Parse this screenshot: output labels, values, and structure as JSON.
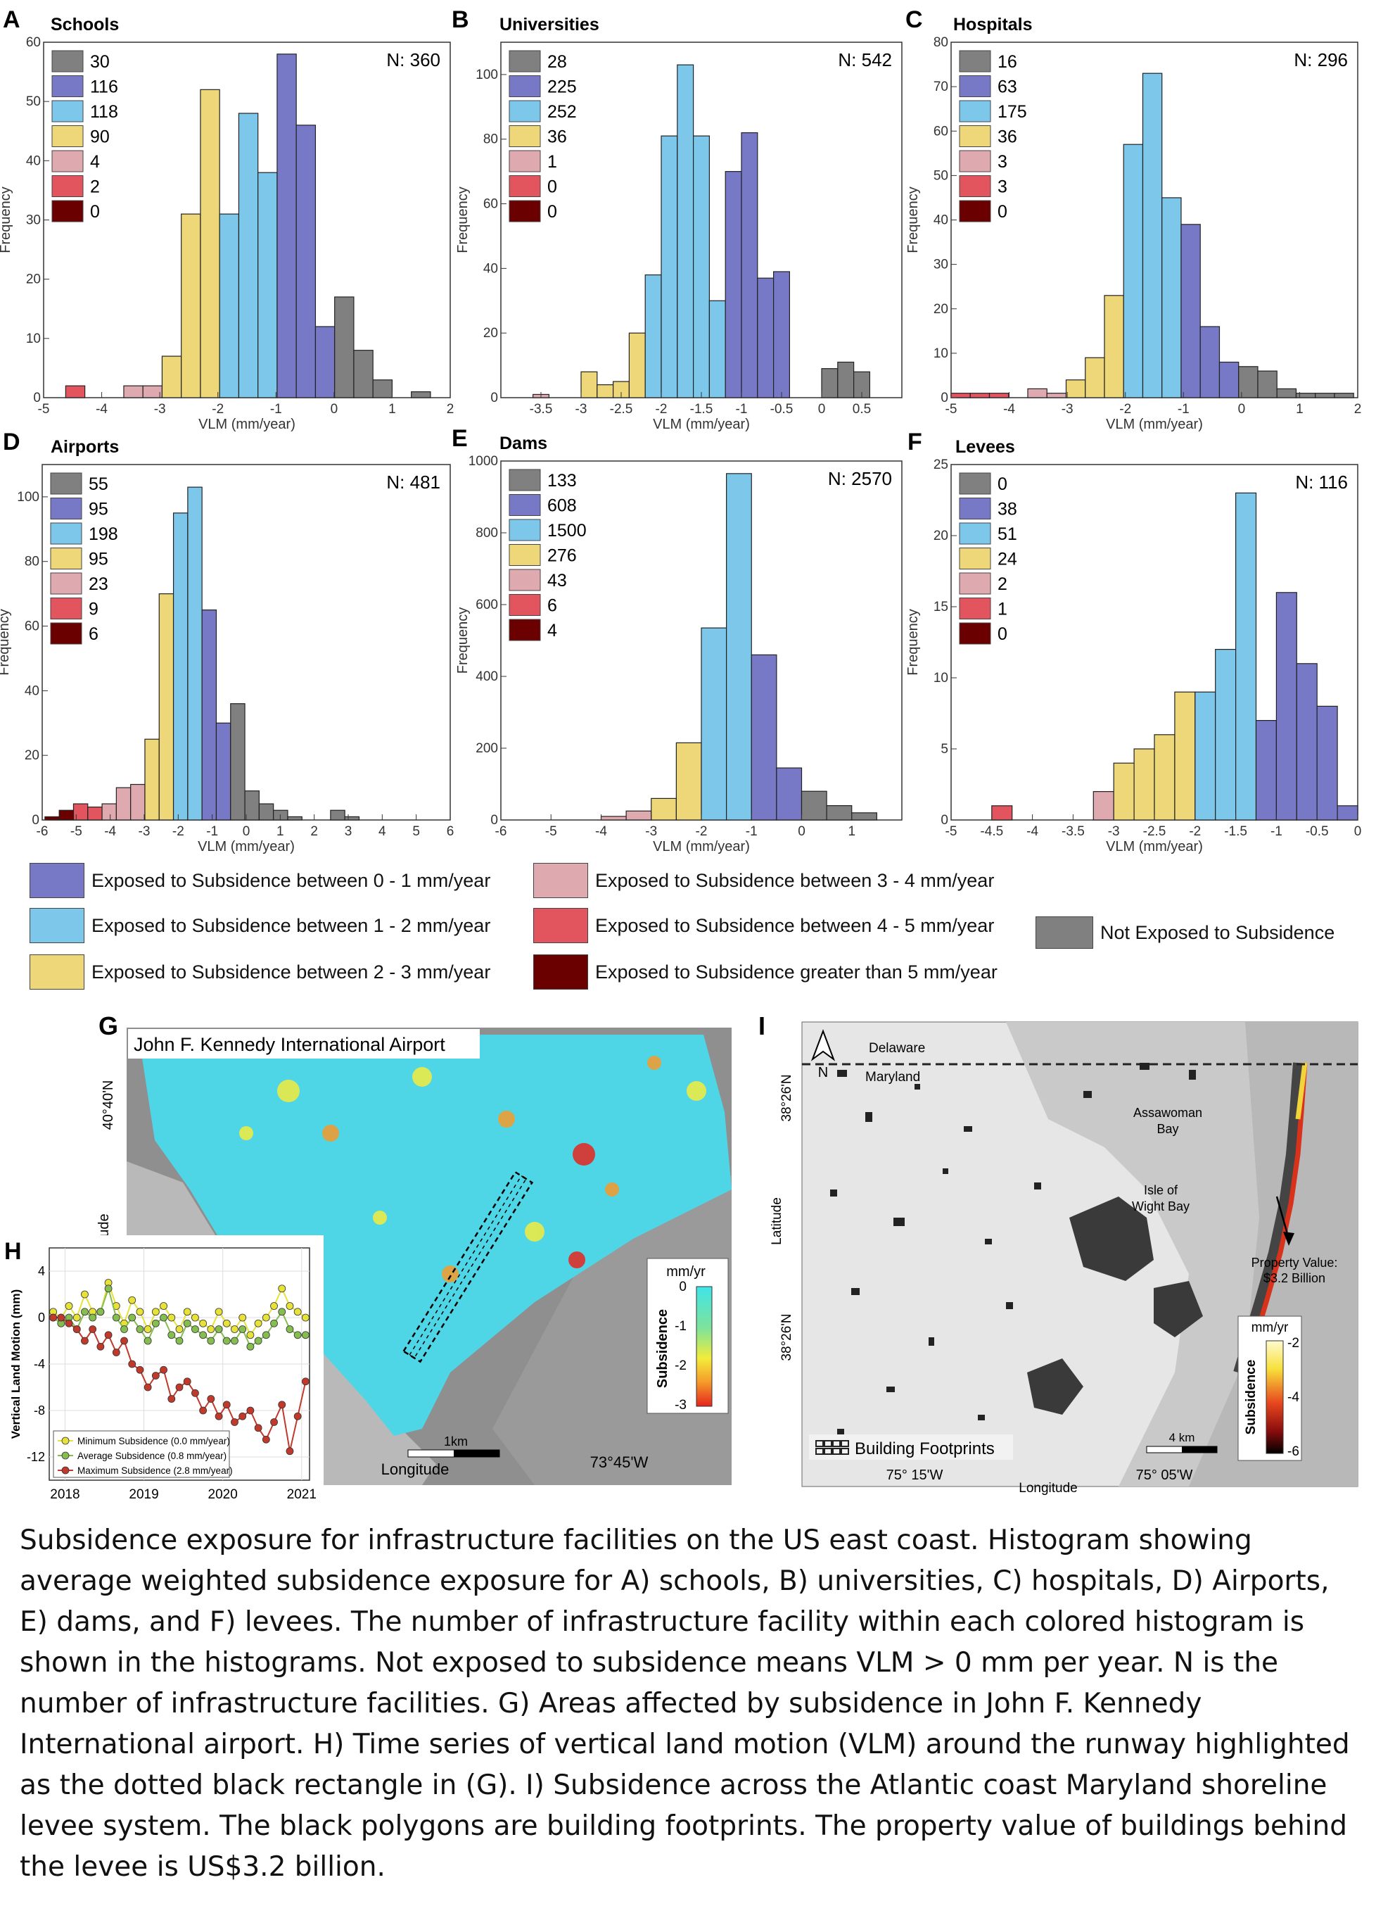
{
  "colors": {
    "grey": "#808080",
    "blue": "#7779c7",
    "lightblue": "#7dc8ea",
    "yellow": "#edd779",
    "pink": "#deaab0",
    "red": "#e2555f",
    "darkred": "#6b0000"
  },
  "chart_data": [
    {
      "type": "bar",
      "panel": "A",
      "title": "Schools",
      "n_label": "N: 360",
      "xlabel": "VLM (mm/year)",
      "ylabel": "Frequency",
      "xlim": [
        -5,
        2
      ],
      "ylim": [
        0,
        60
      ],
      "xticks": [
        -5,
        -4,
        -3,
        -2,
        -1,
        0,
        1,
        2
      ],
      "yticks": [
        0,
        10,
        20,
        30,
        40,
        50,
        60
      ],
      "bin_width": 0.33,
      "legend_counts": [
        "30",
        "116",
        "118",
        "90",
        "4",
        "2",
        "0"
      ],
      "bars": [
        {
          "x": -4.62,
          "v": 2,
          "c": "red"
        },
        {
          "x": -3.62,
          "v": 2,
          "c": "pink"
        },
        {
          "x": -3.29,
          "v": 2,
          "c": "pink"
        },
        {
          "x": -2.96,
          "v": 7,
          "c": "yellow"
        },
        {
          "x": -2.63,
          "v": 31,
          "c": "yellow"
        },
        {
          "x": -2.3,
          "v": 52,
          "c": "yellow"
        },
        {
          "x": -1.97,
          "v": 31,
          "c": "lightblue"
        },
        {
          "x": -1.64,
          "v": 48,
          "c": "lightblue"
        },
        {
          "x": -1.31,
          "v": 38,
          "c": "lightblue"
        },
        {
          "x": -0.98,
          "v": 58,
          "c": "blue"
        },
        {
          "x": -0.65,
          "v": 46,
          "c": "blue"
        },
        {
          "x": -0.32,
          "v": 12,
          "c": "blue"
        },
        {
          "x": 0.01,
          "v": 17,
          "c": "grey"
        },
        {
          "x": 0.34,
          "v": 8,
          "c": "grey"
        },
        {
          "x": 0.67,
          "v": 3,
          "c": "grey"
        },
        {
          "x": 1.33,
          "v": 1,
          "c": "grey"
        }
      ]
    },
    {
      "type": "bar",
      "panel": "B",
      "title": "Universities",
      "n_label": "N: 542",
      "xlabel": "VLM (mm/year)",
      "ylabel": "Frequency",
      "xlim": [
        -4,
        1
      ],
      "ylim": [
        0,
        110
      ],
      "xticks": [
        -3.5,
        -3,
        -2.5,
        -2,
        -1.5,
        -1,
        -0.5,
        0,
        0.5
      ],
      "xtick_labels": [
        "-3.5",
        "-3",
        "-2.5",
        "-2",
        "-1.5",
        "-1",
        "-0.5",
        "0",
        "0.5"
      ],
      "yticks": [
        0,
        20,
        40,
        60,
        80,
        100
      ],
      "bin_width": 0.2,
      "legend_counts": [
        "28",
        "225",
        "252",
        "36",
        "1",
        "0",
        "0"
      ],
      "bars": [
        {
          "x": -3.6,
          "v": 1,
          "c": "pink"
        },
        {
          "x": -3.0,
          "v": 8,
          "c": "yellow"
        },
        {
          "x": -2.8,
          "v": 4,
          "c": "yellow"
        },
        {
          "x": -2.6,
          "v": 5,
          "c": "yellow"
        },
        {
          "x": -2.4,
          "v": 20,
          "c": "yellow"
        },
        {
          "x": -2.2,
          "v": 38,
          "c": "lightblue"
        },
        {
          "x": -2.0,
          "v": 81,
          "c": "lightblue"
        },
        {
          "x": -1.8,
          "v": 103,
          "c": "lightblue"
        },
        {
          "x": -1.6,
          "v": 81,
          "c": "lightblue"
        },
        {
          "x": -1.4,
          "v": 30,
          "c": "lightblue"
        },
        {
          "x": -1.2,
          "v": 70,
          "c": "blue"
        },
        {
          "x": -1.0,
          "v": 82,
          "c": "blue"
        },
        {
          "x": -0.8,
          "v": 37,
          "c": "blue"
        },
        {
          "x": -0.6,
          "v": 39,
          "c": "blue"
        },
        {
          "x": 0.0,
          "v": 9,
          "c": "grey"
        },
        {
          "x": 0.2,
          "v": 11,
          "c": "grey"
        },
        {
          "x": 0.4,
          "v": 8,
          "c": "grey"
        }
      ]
    },
    {
      "type": "bar",
      "panel": "C",
      "title": "Hospitals",
      "n_label": "N: 296",
      "xlabel": "VLM (mm/year)",
      "ylabel": "Frequency",
      "xlim": [
        -5,
        2
      ],
      "ylim": [
        0,
        80
      ],
      "xticks": [
        -5,
        -4,
        -3,
        -2,
        -1,
        0,
        1,
        2
      ],
      "yticks": [
        0,
        10,
        20,
        30,
        40,
        50,
        60,
        70,
        80
      ],
      "bin_width": 0.33,
      "legend_counts": [
        "16",
        "63",
        "175",
        "36",
        "3",
        "3",
        "0"
      ],
      "bars": [
        {
          "x": -5.0,
          "v": 1,
          "c": "red"
        },
        {
          "x": -4.67,
          "v": 1,
          "c": "red"
        },
        {
          "x": -4.34,
          "v": 1,
          "c": "red"
        },
        {
          "x": -3.68,
          "v": 2,
          "c": "pink"
        },
        {
          "x": -3.35,
          "v": 1,
          "c": "pink"
        },
        {
          "x": -3.02,
          "v": 4,
          "c": "yellow"
        },
        {
          "x": -2.69,
          "v": 9,
          "c": "yellow"
        },
        {
          "x": -2.36,
          "v": 23,
          "c": "yellow"
        },
        {
          "x": -2.03,
          "v": 57,
          "c": "lightblue"
        },
        {
          "x": -1.7,
          "v": 73,
          "c": "lightblue"
        },
        {
          "x": -1.37,
          "v": 45,
          "c": "lightblue"
        },
        {
          "x": -1.04,
          "v": 39,
          "c": "blue"
        },
        {
          "x": -0.71,
          "v": 16,
          "c": "blue"
        },
        {
          "x": -0.38,
          "v": 8,
          "c": "blue"
        },
        {
          "x": -0.05,
          "v": 7,
          "c": "grey"
        },
        {
          "x": 0.28,
          "v": 6,
          "c": "grey"
        },
        {
          "x": 0.61,
          "v": 2,
          "c": "grey"
        },
        {
          "x": 0.94,
          "v": 1,
          "c": "grey"
        },
        {
          "x": 1.27,
          "v": 1,
          "c": "grey"
        },
        {
          "x": 1.6,
          "v": 1,
          "c": "grey"
        }
      ]
    },
    {
      "type": "bar",
      "panel": "D",
      "title": "Airports",
      "n_label": "N: 481",
      "xlabel": "VLM (mm/year)",
      "ylabel": "Frequency",
      "xlim": [
        -6,
        6
      ],
      "ylim": [
        0,
        110
      ],
      "xticks": [
        -6,
        -5,
        -4,
        -3,
        -2,
        -1,
        0,
        1,
        2,
        3,
        4,
        5,
        6
      ],
      "yticks": [
        0,
        20,
        40,
        60,
        80,
        100
      ],
      "bin_width": 0.42,
      "legend_counts": [
        "55",
        "95",
        "198",
        "95",
        "23",
        "9",
        "6"
      ],
      "bars": [
        {
          "x": -5.92,
          "v": 1,
          "c": "darkred"
        },
        {
          "x": -5.5,
          "v": 3,
          "c": "darkred"
        },
        {
          "x": -5.08,
          "v": 5,
          "c": "red"
        },
        {
          "x": -4.66,
          "v": 4,
          "c": "red"
        },
        {
          "x": -4.24,
          "v": 5,
          "c": "pink"
        },
        {
          "x": -3.82,
          "v": 10,
          "c": "pink"
        },
        {
          "x": -3.4,
          "v": 11,
          "c": "pink"
        },
        {
          "x": -2.98,
          "v": 25,
          "c": "yellow"
        },
        {
          "x": -2.56,
          "v": 70,
          "c": "yellow"
        },
        {
          "x": -2.14,
          "v": 95,
          "c": "lightblue"
        },
        {
          "x": -1.72,
          "v": 103,
          "c": "lightblue"
        },
        {
          "x": -1.3,
          "v": 65,
          "c": "blue"
        },
        {
          "x": -0.88,
          "v": 30,
          "c": "blue"
        },
        {
          "x": -0.46,
          "v": 36,
          "c": "grey"
        },
        {
          "x": -0.04,
          "v": 9,
          "c": "grey"
        },
        {
          "x": 0.38,
          "v": 5,
          "c": "grey"
        },
        {
          "x": 0.8,
          "v": 3,
          "c": "grey"
        },
        {
          "x": 1.22,
          "v": 1,
          "c": "grey"
        },
        {
          "x": 2.48,
          "v": 3,
          "c": "grey"
        },
        {
          "x": 2.9,
          "v": 1,
          "c": "grey"
        }
      ]
    },
    {
      "type": "bar",
      "panel": "E",
      "title": "Dams",
      "n_label": "N: 2570",
      "xlabel": "VLM (mm/year)",
      "ylabel": "Frequency",
      "xlim": [
        -6,
        2
      ],
      "ylim": [
        0,
        1000
      ],
      "xticks": [
        -6,
        -5,
        -4,
        -3,
        -2,
        -1,
        0,
        1
      ],
      "yticks": [
        0,
        200,
        400,
        600,
        800,
        1000
      ],
      "bin_width": 0.5,
      "legend_counts": [
        "133",
        "608",
        "1500",
        "276",
        "43",
        "6",
        "4"
      ],
      "bars": [
        {
          "x": -4.0,
          "v": 10,
          "c": "pink"
        },
        {
          "x": -3.5,
          "v": 25,
          "c": "pink"
        },
        {
          "x": -3.0,
          "v": 60,
          "c": "yellow"
        },
        {
          "x": -2.5,
          "v": 215,
          "c": "yellow"
        },
        {
          "x": -2.0,
          "v": 535,
          "c": "lightblue"
        },
        {
          "x": -1.5,
          "v": 965,
          "c": "lightblue"
        },
        {
          "x": -1.0,
          "v": 460,
          "c": "blue"
        },
        {
          "x": -0.5,
          "v": 145,
          "c": "blue"
        },
        {
          "x": 0.0,
          "v": 80,
          "c": "grey"
        },
        {
          "x": 0.5,
          "v": 40,
          "c": "grey"
        },
        {
          "x": 1.0,
          "v": 20,
          "c": "grey"
        }
      ]
    },
    {
      "type": "bar",
      "panel": "F",
      "title": "Levees",
      "n_label": "N: 116",
      "xlabel": "VLM (mm/year)",
      "ylabel": "Frequency",
      "xlim": [
        -5,
        0
      ],
      "ylim": [
        0,
        25
      ],
      "xticks": [
        -5,
        -4.5,
        -4,
        -3.5,
        -3,
        -2.5,
        -2,
        -1.5,
        -1,
        -0.5,
        0
      ],
      "xtick_labels": [
        "-5",
        "-4.5",
        "-4",
        "-3.5",
        "-3",
        "-2.5",
        "-2",
        "-1.5",
        "-1",
        "-0.5",
        "0"
      ],
      "yticks": [
        0,
        5,
        10,
        15,
        20,
        25
      ],
      "bin_width": 0.25,
      "legend_counts": [
        "0",
        "38",
        "51",
        "24",
        "2",
        "1",
        "0"
      ],
      "bars": [
        {
          "x": -4.5,
          "v": 1,
          "c": "red"
        },
        {
          "x": -3.25,
          "v": 2,
          "c": "pink"
        },
        {
          "x": -3.0,
          "v": 4,
          "c": "yellow"
        },
        {
          "x": -2.75,
          "v": 5,
          "c": "yellow"
        },
        {
          "x": -2.5,
          "v": 6,
          "c": "yellow"
        },
        {
          "x": -2.25,
          "v": 9,
          "c": "yellow"
        },
        {
          "x": -2.0,
          "v": 9,
          "c": "lightblue"
        },
        {
          "x": -1.75,
          "v": 12,
          "c": "lightblue"
        },
        {
          "x": -1.5,
          "v": 23,
          "c": "lightblue"
        },
        {
          "x": -1.25,
          "v": 7,
          "c": "blue"
        },
        {
          "x": -1.0,
          "v": 16,
          "c": "blue"
        },
        {
          "x": -0.75,
          "v": 11,
          "c": "blue"
        },
        {
          "x": -0.5,
          "v": 8,
          "c": "blue"
        },
        {
          "x": -0.25,
          "v": 1,
          "c": "blue"
        }
      ]
    },
    {
      "type": "line",
      "panel": "H",
      "ylabel": "Vertical Land Motion (mm)",
      "xticks": [
        "2018",
        "2019",
        "2020",
        "2021"
      ],
      "yticks": [
        "4",
        "0",
        "-4",
        "-8",
        "-12"
      ],
      "ylim": [
        -14,
        6
      ],
      "xlim": [
        2017.8,
        2021.1
      ],
      "series": [
        {
          "name": "Minimum Subsidence (0.0 mm/year)",
          "color": "#e6e23a",
          "x": [
            2017.85,
            2017.95,
            2018.05,
            2018.15,
            2018.25,
            2018.35,
            2018.45,
            2018.55,
            2018.65,
            2018.75,
            2018.85,
            2018.95,
            2019.05,
            2019.15,
            2019.25,
            2019.35,
            2019.45,
            2019.55,
            2019.65,
            2019.75,
            2019.85,
            2019.95,
            2020.05,
            2020.15,
            2020.25,
            2020.35,
            2020.45,
            2020.55,
            2020.65,
            2020.75,
            2020.85,
            2020.95,
            2021.05
          ],
          "y": [
            0.5,
            0.0,
            1.0,
            0.0,
            2.0,
            0.5,
            0.5,
            3.0,
            1.0,
            -0.5,
            1.5,
            0.5,
            -1.0,
            0.5,
            1.0,
            0.0,
            -1.0,
            0.5,
            0.0,
            -0.5,
            -1.0,
            0.5,
            -0.5,
            -1.0,
            0.0,
            -1.5,
            -0.5,
            0.0,
            1.0,
            2.5,
            1.0,
            0.5,
            0.0
          ]
        },
        {
          "name": "Average Subsidence (0.8 mm/year)",
          "color": "#86bd4f",
          "x": [
            2017.85,
            2017.95,
            2018.05,
            2018.15,
            2018.25,
            2018.35,
            2018.45,
            2018.55,
            2018.65,
            2018.75,
            2018.85,
            2018.95,
            2019.05,
            2019.15,
            2019.25,
            2019.35,
            2019.45,
            2019.55,
            2019.65,
            2019.75,
            2019.85,
            2019.95,
            2020.05,
            2020.15,
            2020.25,
            2020.35,
            2020.45,
            2020.55,
            2020.65,
            2020.75,
            2020.85,
            2020.95,
            2021.05
          ],
          "y": [
            0.0,
            -0.5,
            0.0,
            -1.0,
            0.5,
            0.0,
            0.5,
            2.5,
            0.0,
            -1.0,
            0.0,
            -1.0,
            -2.0,
            -0.5,
            0.0,
            -1.5,
            -2.0,
            -0.5,
            -1.0,
            -1.5,
            -2.0,
            -1.0,
            -2.0,
            -2.0,
            -1.0,
            -2.5,
            -2.0,
            -1.5,
            -0.5,
            0.5,
            -1.0,
            -1.5,
            -1.5
          ]
        },
        {
          "name": "Maximum Subsidence (2.8 mm/year)",
          "color": "#c0392b",
          "x": [
            2017.85,
            2017.95,
            2018.05,
            2018.15,
            2018.25,
            2018.35,
            2018.45,
            2018.55,
            2018.65,
            2018.75,
            2018.85,
            2018.95,
            2019.05,
            2019.15,
            2019.25,
            2019.35,
            2019.45,
            2019.55,
            2019.65,
            2019.75,
            2019.85,
            2019.95,
            2020.05,
            2020.15,
            2020.25,
            2020.35,
            2020.45,
            2020.55,
            2020.65,
            2020.75,
            2020.85,
            2020.95,
            2021.05
          ],
          "y": [
            0.0,
            0.0,
            -0.5,
            -1.0,
            -2.0,
            -1.0,
            -2.5,
            -1.5,
            -3.0,
            -2.0,
            -4.0,
            -4.5,
            -6.0,
            -5.0,
            -4.5,
            -7.0,
            -6.0,
            -5.5,
            -6.5,
            -8.0,
            -7.0,
            -8.5,
            -7.5,
            -9.0,
            -8.5,
            -8.0,
            -9.5,
            -10.5,
            -9.0,
            -7.5,
            -11.5,
            -8.5,
            -5.5
          ]
        }
      ]
    }
  ],
  "legend": {
    "blue": "Exposed to Subsidence between 0 - 1 mm/year",
    "lightblue": "Exposed to Subsidence between 1 - 2 mm/year",
    "yellow": "Exposed to Subsidence between 2 - 3 mm/year",
    "pink": "Exposed to Subsidence between 3 - 4 mm/year",
    "red": "Exposed to Subsidence between 4 - 5 mm/year",
    "darkred": "Exposed to Subsidence greater than 5 mm/year",
    "grey": "Not Exposed to Subsidence"
  },
  "map_g": {
    "letter": "G",
    "title": "John F. Kennedy International Airport",
    "lat_tick": "40°40'N",
    "ylabel": "Latitude",
    "xlabel": "Longitude",
    "lon_tick": "73°45'W",
    "scale": "1km",
    "cbar_unit": "mm/yr",
    "cbar_label": "Subsidence",
    "cbar_ticks": [
      "0",
      "-1",
      "-2",
      "-3"
    ]
  },
  "panel_h": {
    "letter": "H"
  },
  "map_i": {
    "letter": "I",
    "state1": "Delaware",
    "state2": "Maryland",
    "north": "N",
    "bay1a": "Assawoman",
    "bay1b": "Bay",
    "bay2a": "Isle of",
    "bay2b": "Wight Bay",
    "prop_a": "Property Value:",
    "prop_b": "$3.2 Billion",
    "lat1": "38°26'N",
    "lat2": "38°26'N",
    "ylabel": "Latitude",
    "xlabel": "Longitude",
    "lon1": "75° 15'W",
    "lon2": "75° 05'W",
    "footprints": "Building Footprints",
    "scale": "4 km",
    "cbar_unit": "mm/yr",
    "cbar_label": "Subsidence",
    "cbar_ticks": [
      "-2",
      "-4",
      "-6"
    ]
  },
  "caption": "Subsidence exposure for infrastructure facilities on the US east coast. Histogram showing average weighted subsidence exposure for A) schools, B) universities, C) hospitals, D) Airports, E) dams, and F) levees. The number of infrastructure facility within each colored histogram is shown in the histograms. Not exposed to subsidence means VLM > 0 mm per year. N is the number of infrastructure facilities. G) Areas affected by subsidence in John F. Kennedy International airport. H) Time series of vertical land motion (VLM) around the runway highlighted as the dotted black rectangle in (G). I) Subsidence across the Atlantic coast Maryland shoreline levee system. The black polygons are building footprints. The property value of buildings behind the levee is US$3.2 billion."
}
